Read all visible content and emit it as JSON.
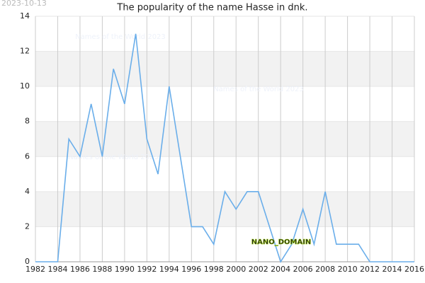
{
  "chart_data": {
    "type": "line",
    "title": "The popularity of the name Hasse in dnk.",
    "date": "2023-10-13",
    "watermark": "NANO_DOMAIN",
    "faint_labels": [
      "Names of the World 2023",
      "Names of the World 2023",
      "Names of the World 2023"
    ],
    "x": [
      1982,
      1983,
      1984,
      1985,
      1986,
      1987,
      1988,
      1989,
      1990,
      1991,
      1992,
      1993,
      1994,
      1995,
      1996,
      1997,
      1998,
      1999,
      2000,
      2001,
      2002,
      2003,
      2004,
      2005,
      2006,
      2007,
      2008,
      2009,
      2010,
      2011,
      2012,
      2013,
      2014,
      2015,
      2016
    ],
    "values": [
      0,
      0,
      0,
      7,
      6,
      9,
      6,
      11,
      9,
      13,
      7,
      5,
      10,
      6,
      2,
      2,
      1,
      4,
      3,
      4,
      4,
      2,
      0,
      1,
      3,
      1,
      4,
      1,
      1,
      1,
      0,
      0,
      0,
      0,
      0
    ],
    "color": "#6aaeea",
    "xlim": [
      1982,
      2016
    ],
    "ylim": [
      0,
      14
    ],
    "xticks": [
      1982,
      1984,
      1986,
      1988,
      1990,
      1992,
      1994,
      1996,
      1998,
      2000,
      2002,
      2004,
      2006,
      2008,
      2010,
      2012,
      2014,
      2016
    ],
    "yticks": [
      0,
      2,
      4,
      6,
      8,
      10,
      12,
      14
    ],
    "grid": true,
    "bands": true
  }
}
